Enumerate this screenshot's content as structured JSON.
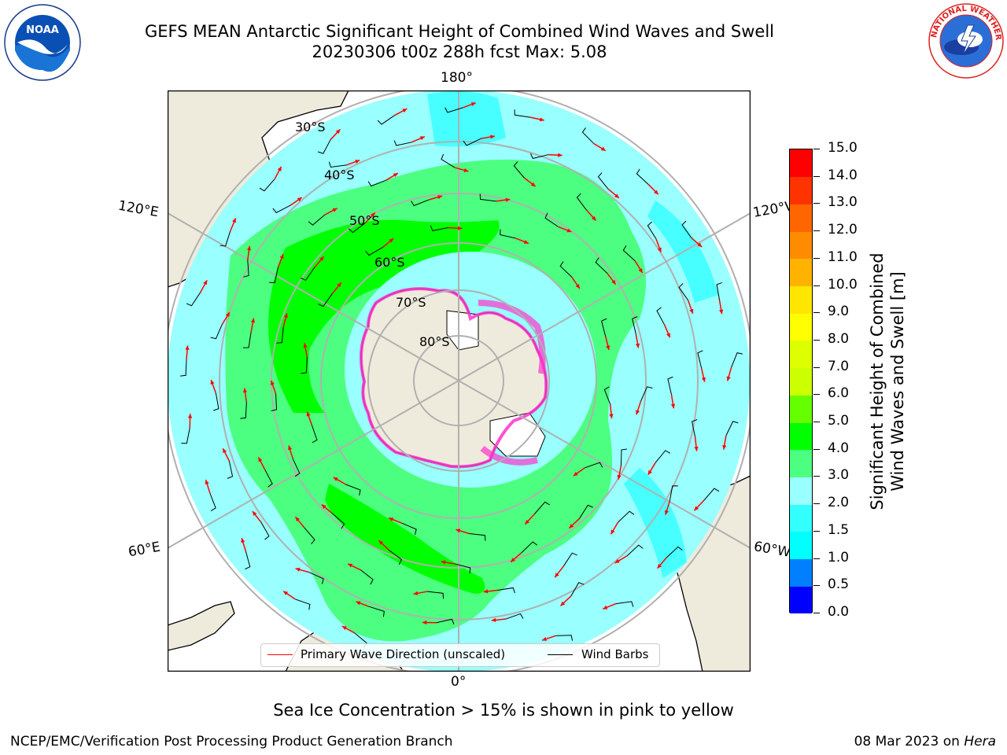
{
  "title": {
    "line1": "GEFS MEAN Antarctic Significant Height of Combined Wind Waves and Swell",
    "line2": "20230306 t00z 288h fcst   Max: 5.08"
  },
  "map": {
    "projection": "south-polar-stereographic",
    "lon_labels": [
      "180°",
      "120°E",
      "120°W",
      "60°E",
      "60°W",
      "0°"
    ],
    "lat_labels": [
      "30°S",
      "40°S",
      "50°S",
      "60°S",
      "70°S",
      "80°S"
    ],
    "colors": {
      "land": "#efebdc",
      "sea_ice_white": "#ffffff",
      "ice_edge": "#ff33cc",
      "grid": "#b0b0b0",
      "wave_arrow": "#ff0000",
      "wind_barb": "#000000"
    }
  },
  "legend": {
    "primary_wave": "Primary Wave Direction (unscaled)",
    "wind_barbs": "Wind Barbs"
  },
  "colorbar": {
    "label_line1": "Significant Height of Combined",
    "label_line2": "Wind Waves and Swell [m]",
    "ticks": [
      "0.0",
      "0.5",
      "1.0",
      "1.5",
      "2.0",
      "3.0",
      "4.0",
      "5.0",
      "6.0",
      "7.0",
      "8.0",
      "9.0",
      "10.0",
      "11.0",
      "12.0",
      "13.0",
      "14.0",
      "15.0"
    ],
    "colors": [
      "#0000ff",
      "#0080ff",
      "#00ffff",
      "#33ffff",
      "#99ffff",
      "#4dff80",
      "#00ff00",
      "#66ff00",
      "#ccff00",
      "#ddff00",
      "#ffff00",
      "#ffe600",
      "#ffb300",
      "#ff8c00",
      "#ff6600",
      "#ff3300",
      "#ff0000"
    ]
  },
  "footnote": "Sea Ice Concentration > 15% is shown in pink to yellow",
  "credits": {
    "left": "NCEP/EMC/Verification Post Processing Product Generation Branch",
    "right_prefix": "08 Mar 2023 on ",
    "right_host": "Hera"
  },
  "logos": {
    "noaa_text": "NOAA",
    "nws_text": "NATIONAL WEATHER SERVICE"
  }
}
